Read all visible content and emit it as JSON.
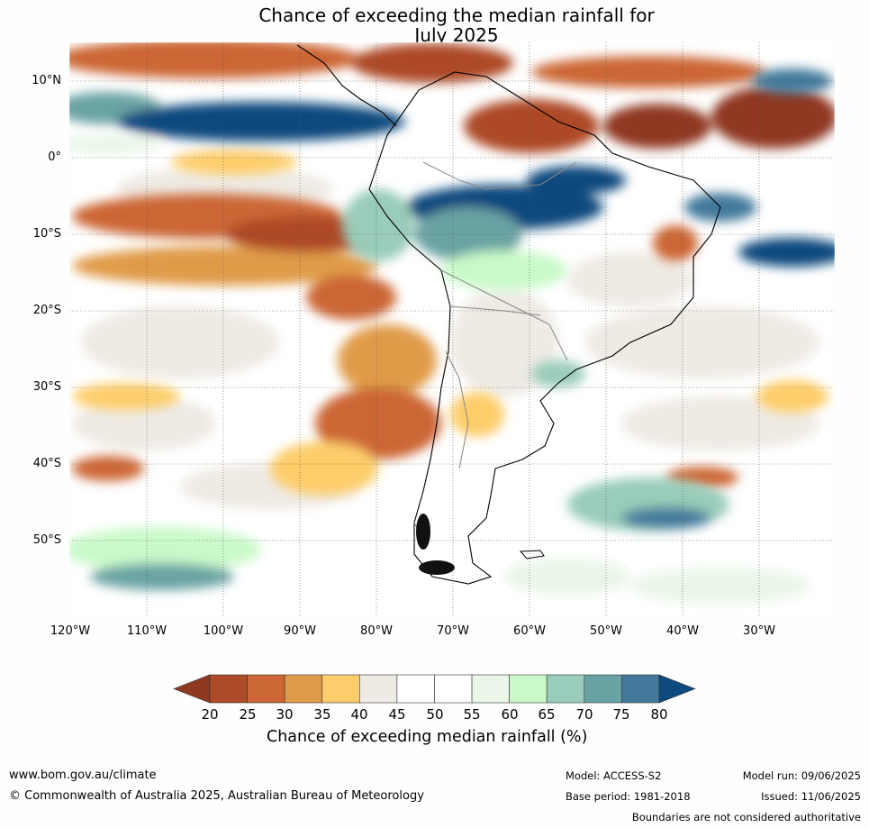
{
  "title": {
    "line1": "Chance of exceeding the median rainfall for",
    "line2": "July 2025"
  },
  "map": {
    "lat_labels": [
      "10°N",
      "0°",
      "10°S",
      "20°S",
      "30°S",
      "40°S",
      "50°S"
    ],
    "lon_labels": [
      "120°W",
      "110°W",
      "100°W",
      "90°W",
      "80°W",
      "70°W",
      "60°W",
      "50°W",
      "40°W",
      "30°W"
    ]
  },
  "colorbar": {
    "ticks": [
      "20",
      "25",
      "30",
      "35",
      "40",
      "45",
      "50",
      "55",
      "60",
      "65",
      "70",
      "75",
      "80"
    ],
    "colors": [
      "#8f3921",
      "#ad4a27",
      "#cc6634",
      "#e09b4a",
      "#fdcd6b",
      "#eeeae4",
      "#ffffff",
      "#ffffff",
      "#e9f6e8",
      "#c9f9c9",
      "#99ccb9",
      "#6aa3a3",
      "#43799b",
      "#0f4a7e"
    ],
    "label": "Chance of exceeding median rainfall (%)"
  },
  "footer": {
    "website": "www.bom.gov.au/climate",
    "copyright": "© Commonwealth of Australia 2025, Australian Bureau of Meteorology",
    "model": "Model: ACCESS-S2",
    "model_run": "Model run: 09/06/2025",
    "base_period": "Base period: 1981-2018",
    "issued": "Issued: 11/06/2025",
    "disclaimer": "Boundaries are not considered authoritative"
  }
}
